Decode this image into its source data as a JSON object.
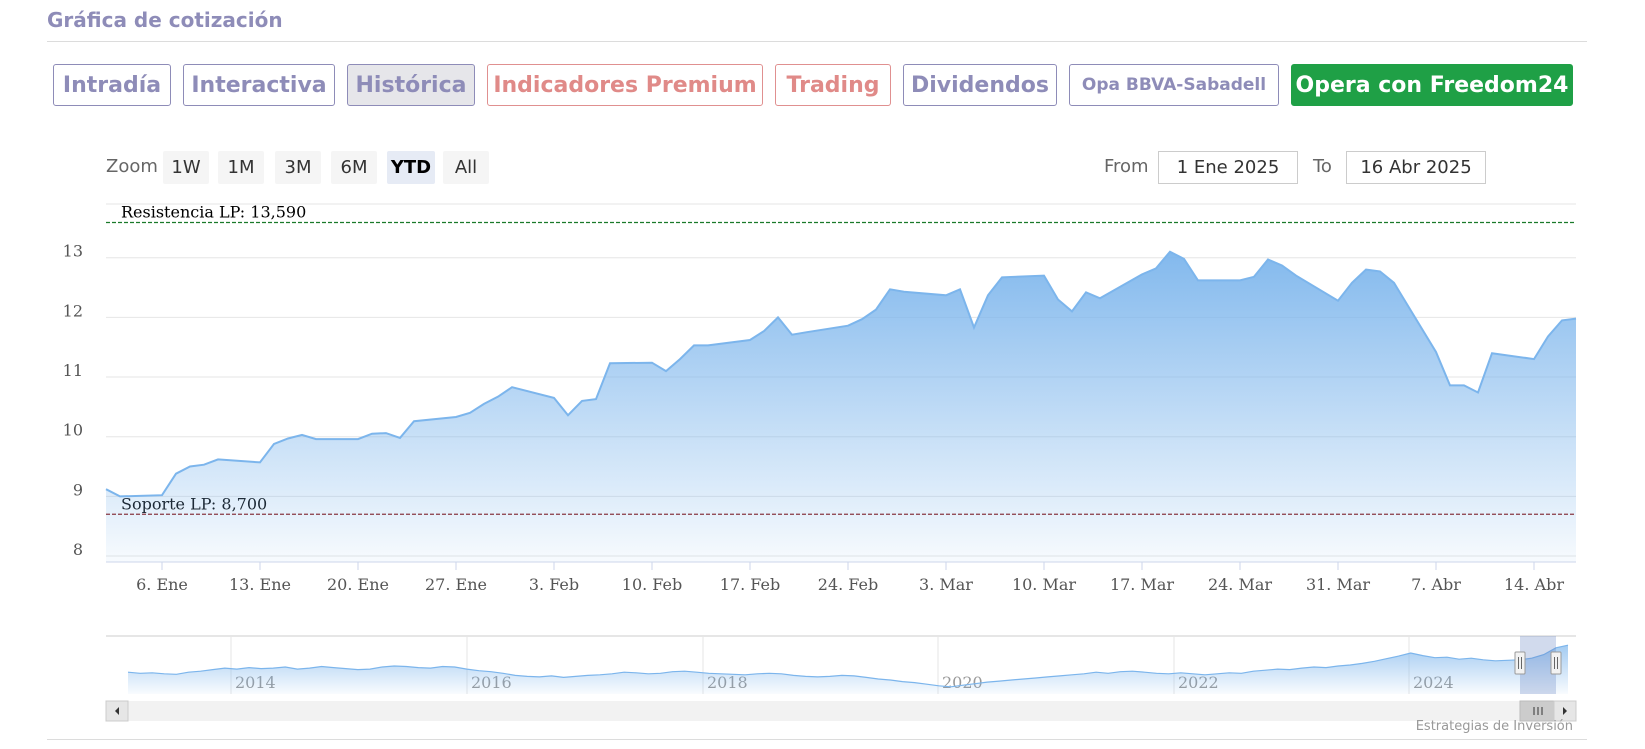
{
  "section_title": "Gráfica de cotización",
  "tabs": [
    {
      "label": "Intradía"
    },
    {
      "label": "Interactiva"
    },
    {
      "label": "Histórica"
    },
    {
      "label": "Indicadores Premium"
    },
    {
      "label": "Trading"
    },
    {
      "label": "Dividendos"
    },
    {
      "label": "Opa BBVA-Sabadell"
    },
    {
      "label": "Opera con Freedom24"
    }
  ],
  "active_tab": "Histórica",
  "zoom": {
    "label": "Zoom",
    "buttons": [
      "1W",
      "1M",
      "3M",
      "6M",
      "YTD",
      "All"
    ],
    "selected": "YTD"
  },
  "range": {
    "from_label": "From",
    "from_value": "1 Ene 2025",
    "to_label": "To",
    "to_value": "16 Abr 2025"
  },
  "credit": "Estrategias de Inversión",
  "colors": {
    "tab_text": "#8e8cb8",
    "premium_text": "#e08a88",
    "freedom_bg": "#1fa046",
    "series_line": "#7cb5ec",
    "resistance_line": "#1a7a2a",
    "support_line": "#8b1a1a"
  },
  "chart_data": {
    "type": "area",
    "series": [
      {
        "values": [
          [
            "2025-01-02",
            9.12
          ],
          [
            "2025-01-03",
            9.0
          ],
          [
            "2025-01-06",
            9.02
          ],
          [
            "2025-01-07",
            9.38
          ],
          [
            "2025-01-08",
            9.5
          ],
          [
            "2025-01-09",
            9.53
          ],
          [
            "2025-01-10",
            9.62
          ],
          [
            "2025-01-13",
            9.57
          ],
          [
            "2025-01-14",
            9.88
          ],
          [
            "2025-01-15",
            9.97
          ],
          [
            "2025-01-16",
            10.03
          ],
          [
            "2025-01-17",
            9.96
          ],
          [
            "2025-01-20",
            9.96
          ],
          [
            "2025-01-21",
            10.05
          ],
          [
            "2025-01-22",
            10.06
          ],
          [
            "2025-01-23",
            9.98
          ],
          [
            "2025-01-24",
            10.26
          ],
          [
            "2025-01-27",
            10.33
          ],
          [
            "2025-01-28",
            10.4
          ],
          [
            "2025-01-29",
            10.55
          ],
          [
            "2025-01-30",
            10.67
          ],
          [
            "2025-01-31",
            10.83
          ],
          [
            "2025-02-03",
            10.65
          ],
          [
            "2025-02-04",
            10.36
          ],
          [
            "2025-02-05",
            10.6
          ],
          [
            "2025-02-06",
            10.63
          ],
          [
            "2025-02-07",
            11.23
          ],
          [
            "2025-02-10",
            11.24
          ],
          [
            "2025-02-11",
            11.1
          ],
          [
            "2025-02-12",
            11.3
          ],
          [
            "2025-02-13",
            11.53
          ],
          [
            "2025-02-14",
            11.53
          ],
          [
            "2025-02-17",
            11.62
          ],
          [
            "2025-02-18",
            11.77
          ],
          [
            "2025-02-19",
            12.0
          ],
          [
            "2025-02-20",
            11.71
          ],
          [
            "2025-02-21",
            11.75
          ],
          [
            "2025-02-24",
            11.86
          ],
          [
            "2025-02-25",
            11.97
          ],
          [
            "2025-02-26",
            12.13
          ],
          [
            "2025-02-27",
            12.47
          ],
          [
            "2025-02-28",
            12.43
          ],
          [
            "2025-03-03",
            12.37
          ],
          [
            "2025-03-04",
            12.47
          ],
          [
            "2025-03-05",
            11.83
          ],
          [
            "2025-03-06",
            12.37
          ],
          [
            "2025-03-07",
            12.67
          ],
          [
            "2025-03-10",
            12.7
          ],
          [
            "2025-03-11",
            12.3
          ],
          [
            "2025-03-12",
            12.1
          ],
          [
            "2025-03-13",
            12.42
          ],
          [
            "2025-03-14",
            12.32
          ],
          [
            "2025-03-17",
            12.72
          ],
          [
            "2025-03-18",
            12.82
          ],
          [
            "2025-03-19",
            13.1
          ],
          [
            "2025-03-20",
            12.98
          ],
          [
            "2025-03-21",
            12.62
          ],
          [
            "2025-03-24",
            12.62
          ],
          [
            "2025-03-25",
            12.68
          ],
          [
            "2025-03-26",
            12.97
          ],
          [
            "2025-03-27",
            12.87
          ],
          [
            "2025-03-28",
            12.7
          ],
          [
            "2025-03-31",
            12.28
          ],
          [
            "2025-04-01",
            12.58
          ],
          [
            "2025-04-02",
            12.8
          ],
          [
            "2025-04-03",
            12.77
          ],
          [
            "2025-04-04",
            12.58
          ],
          [
            "2025-04-07",
            11.42
          ],
          [
            "2025-04-08",
            10.86
          ],
          [
            "2025-04-09",
            10.86
          ],
          [
            "2025-04-10",
            10.74
          ],
          [
            "2025-04-11",
            11.4
          ],
          [
            "2025-04-14",
            11.3
          ],
          [
            "2025-04-15",
            11.68
          ],
          [
            "2025-04-16",
            11.95
          ],
          [
            "2025-04-17",
            11.98
          ]
        ]
      }
    ],
    "x_ticks": [
      {
        "date": "2025-01-06",
        "label": "6. Ene"
      },
      {
        "date": "2025-01-13",
        "label": "13. Ene"
      },
      {
        "date": "2025-01-20",
        "label": "20. Ene"
      },
      {
        "date": "2025-01-27",
        "label": "27. Ene"
      },
      {
        "date": "2025-02-03",
        "label": "3. Feb"
      },
      {
        "date": "2025-02-10",
        "label": "10. Feb"
      },
      {
        "date": "2025-02-17",
        "label": "17. Feb"
      },
      {
        "date": "2025-02-24",
        "label": "24. Feb"
      },
      {
        "date": "2025-03-03",
        "label": "3. Mar"
      },
      {
        "date": "2025-03-10",
        "label": "10. Mar"
      },
      {
        "date": "2025-03-17",
        "label": "17. Mar"
      },
      {
        "date": "2025-03-24",
        "label": "24. Mar"
      },
      {
        "date": "2025-03-31",
        "label": "31. Mar"
      },
      {
        "date": "2025-04-07",
        "label": "7. Abr"
      },
      {
        "date": "2025-04-14",
        "label": "14. Abr"
      }
    ],
    "xlim": [
      "2025-01-02",
      "2025-04-17"
    ],
    "y_ticks": [
      8,
      9,
      10,
      11,
      12,
      13
    ],
    "ylim": [
      7.9,
      13.9
    ],
    "grid": true,
    "reference_lines": [
      {
        "label": "Resistencia LP: 13,590",
        "value": 13.59,
        "color": "#1a7a2a"
      },
      {
        "label": "Soporte LP: 8,700",
        "value": 8.7,
        "color": "#8b1a1a"
      }
    ],
    "navigator": {
      "year_labels": [
        "2014",
        "2016",
        "2018",
        "2020",
        "2022",
        "2024"
      ],
      "values": [
        7.8,
        7.6,
        7.7,
        7.5,
        7.4,
        7.8,
        8.0,
        8.3,
        8.6,
        8.4,
        8.7,
        8.5,
        8.6,
        8.8,
        8.4,
        8.6,
        8.9,
        8.7,
        8.5,
        8.3,
        8.4,
        8.8,
        9.0,
        8.9,
        8.7,
        8.6,
        8.9,
        8.8,
        8.4,
        8.1,
        7.9,
        7.6,
        7.2,
        7.0,
        6.9,
        7.1,
        6.8,
        7.0,
        7.2,
        7.3,
        7.5,
        7.8,
        7.7,
        7.5,
        7.6,
        7.9,
        8.0,
        7.8,
        7.6,
        7.5,
        7.4,
        7.3,
        7.5,
        7.6,
        7.5,
        7.2,
        7.0,
        6.9,
        7.0,
        7.2,
        7.1,
        6.8,
        6.5,
        6.3,
        6.0,
        5.8,
        5.5,
        5.2,
        5.0,
        5.3,
        5.6,
        5.9,
        6.1,
        6.3,
        6.5,
        6.7,
        6.9,
        7.1,
        7.3,
        7.5,
        7.8,
        7.6,
        7.9,
        8.0,
        7.8,
        7.6,
        7.5,
        7.7,
        7.5,
        7.3,
        7.5,
        7.7,
        7.6,
        8.0,
        8.2,
        8.4,
        8.3,
        8.6,
        8.8,
        8.7,
        9.0,
        9.2,
        9.5,
        9.9,
        10.4,
        10.9,
        11.5,
        11.0,
        10.6,
        10.7,
        10.3,
        10.5,
        10.2,
        10.0,
        10.1,
        10.2,
        10.5,
        11.2,
        12.5,
        13.0
      ],
      "ylim": [
        4,
        14
      ]
    }
  }
}
